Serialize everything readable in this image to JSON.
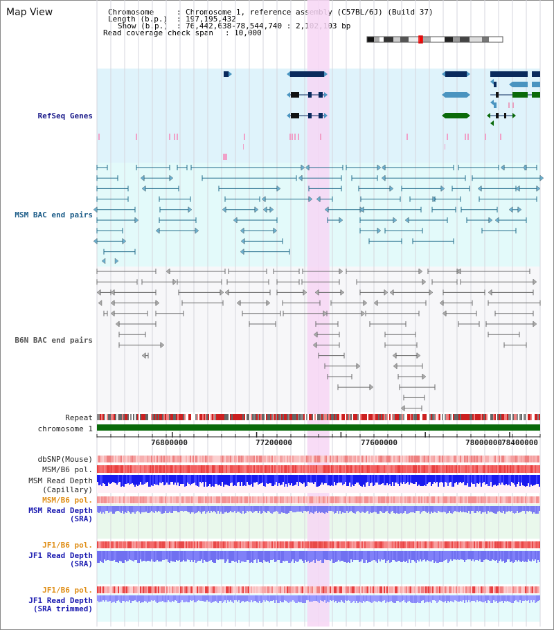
{
  "view_title": "Map View",
  "header": {
    "chromosome_key": "Chromosome",
    "chromosome_val": "Chromosome 1, reference assembly (C57BL/6J) (Build 37)",
    "length_key": "Length (b.p.)",
    "length_val": "197,195,432",
    "show_key": "Show (b.p.)",
    "show_val": "76,442,638-78,544,740 : 2,102,103 bp",
    "coverage_key": "Read coverage check span",
    "coverage_val": "10,000"
  },
  "track_labels": {
    "refseq": "RefSeq Genes",
    "msm_bac": "MSM BAC end pairs",
    "b6n_bac": "B6N BAC end pairs",
    "repeat": "Repeat",
    "chromosome": "chromosome 1",
    "dbsnp": "dbSNP(Mouse)",
    "msm_b6_pol": "MSM/B6 pol.",
    "msm_depth_cap_1": "MSM Read Depth",
    "msm_depth_cap_2": "(Capillary)",
    "msm_b6_pol_sra": "MSM/B6 pol.",
    "msm_depth_sra_1": "MSM Read Depth",
    "msm_depth_sra_2": "(SRA)",
    "jf1_b6_pol": "JF1/B6 pol.",
    "jf1_depth_1": "JF1 Read Depth",
    "jf1_depth_2": "(SRA)",
    "jf1_b6_pol_trim": "JF1/B6 pol.",
    "jf1_depth_trim_1": "JF1 Read Depth",
    "jf1_depth_trim_2": "(SRA trimmed)"
  },
  "axis": {
    "range_bp": [
      76442638,
      78544740
    ],
    "tick_labels": [
      "76800000",
      "77200000",
      "77600000",
      "78000000",
      "78400000"
    ],
    "highlight_bp": [
      77440000,
      77545000
    ]
  },
  "colors": {
    "refseq_bg": "#dff3fb",
    "msm_bg": "#e3fafa",
    "b6n_bg": "#f7f7f9",
    "highlight": "#f7d6f5",
    "gene_dark": "#0a2a5c",
    "gene_mid": "#4a94c0",
    "gene_green": "#0a6a0a",
    "msm_bac": "#1c6888",
    "b6n_bac": "#6a6a6a",
    "chromosome_bar": "#0a6a0a"
  }
}
